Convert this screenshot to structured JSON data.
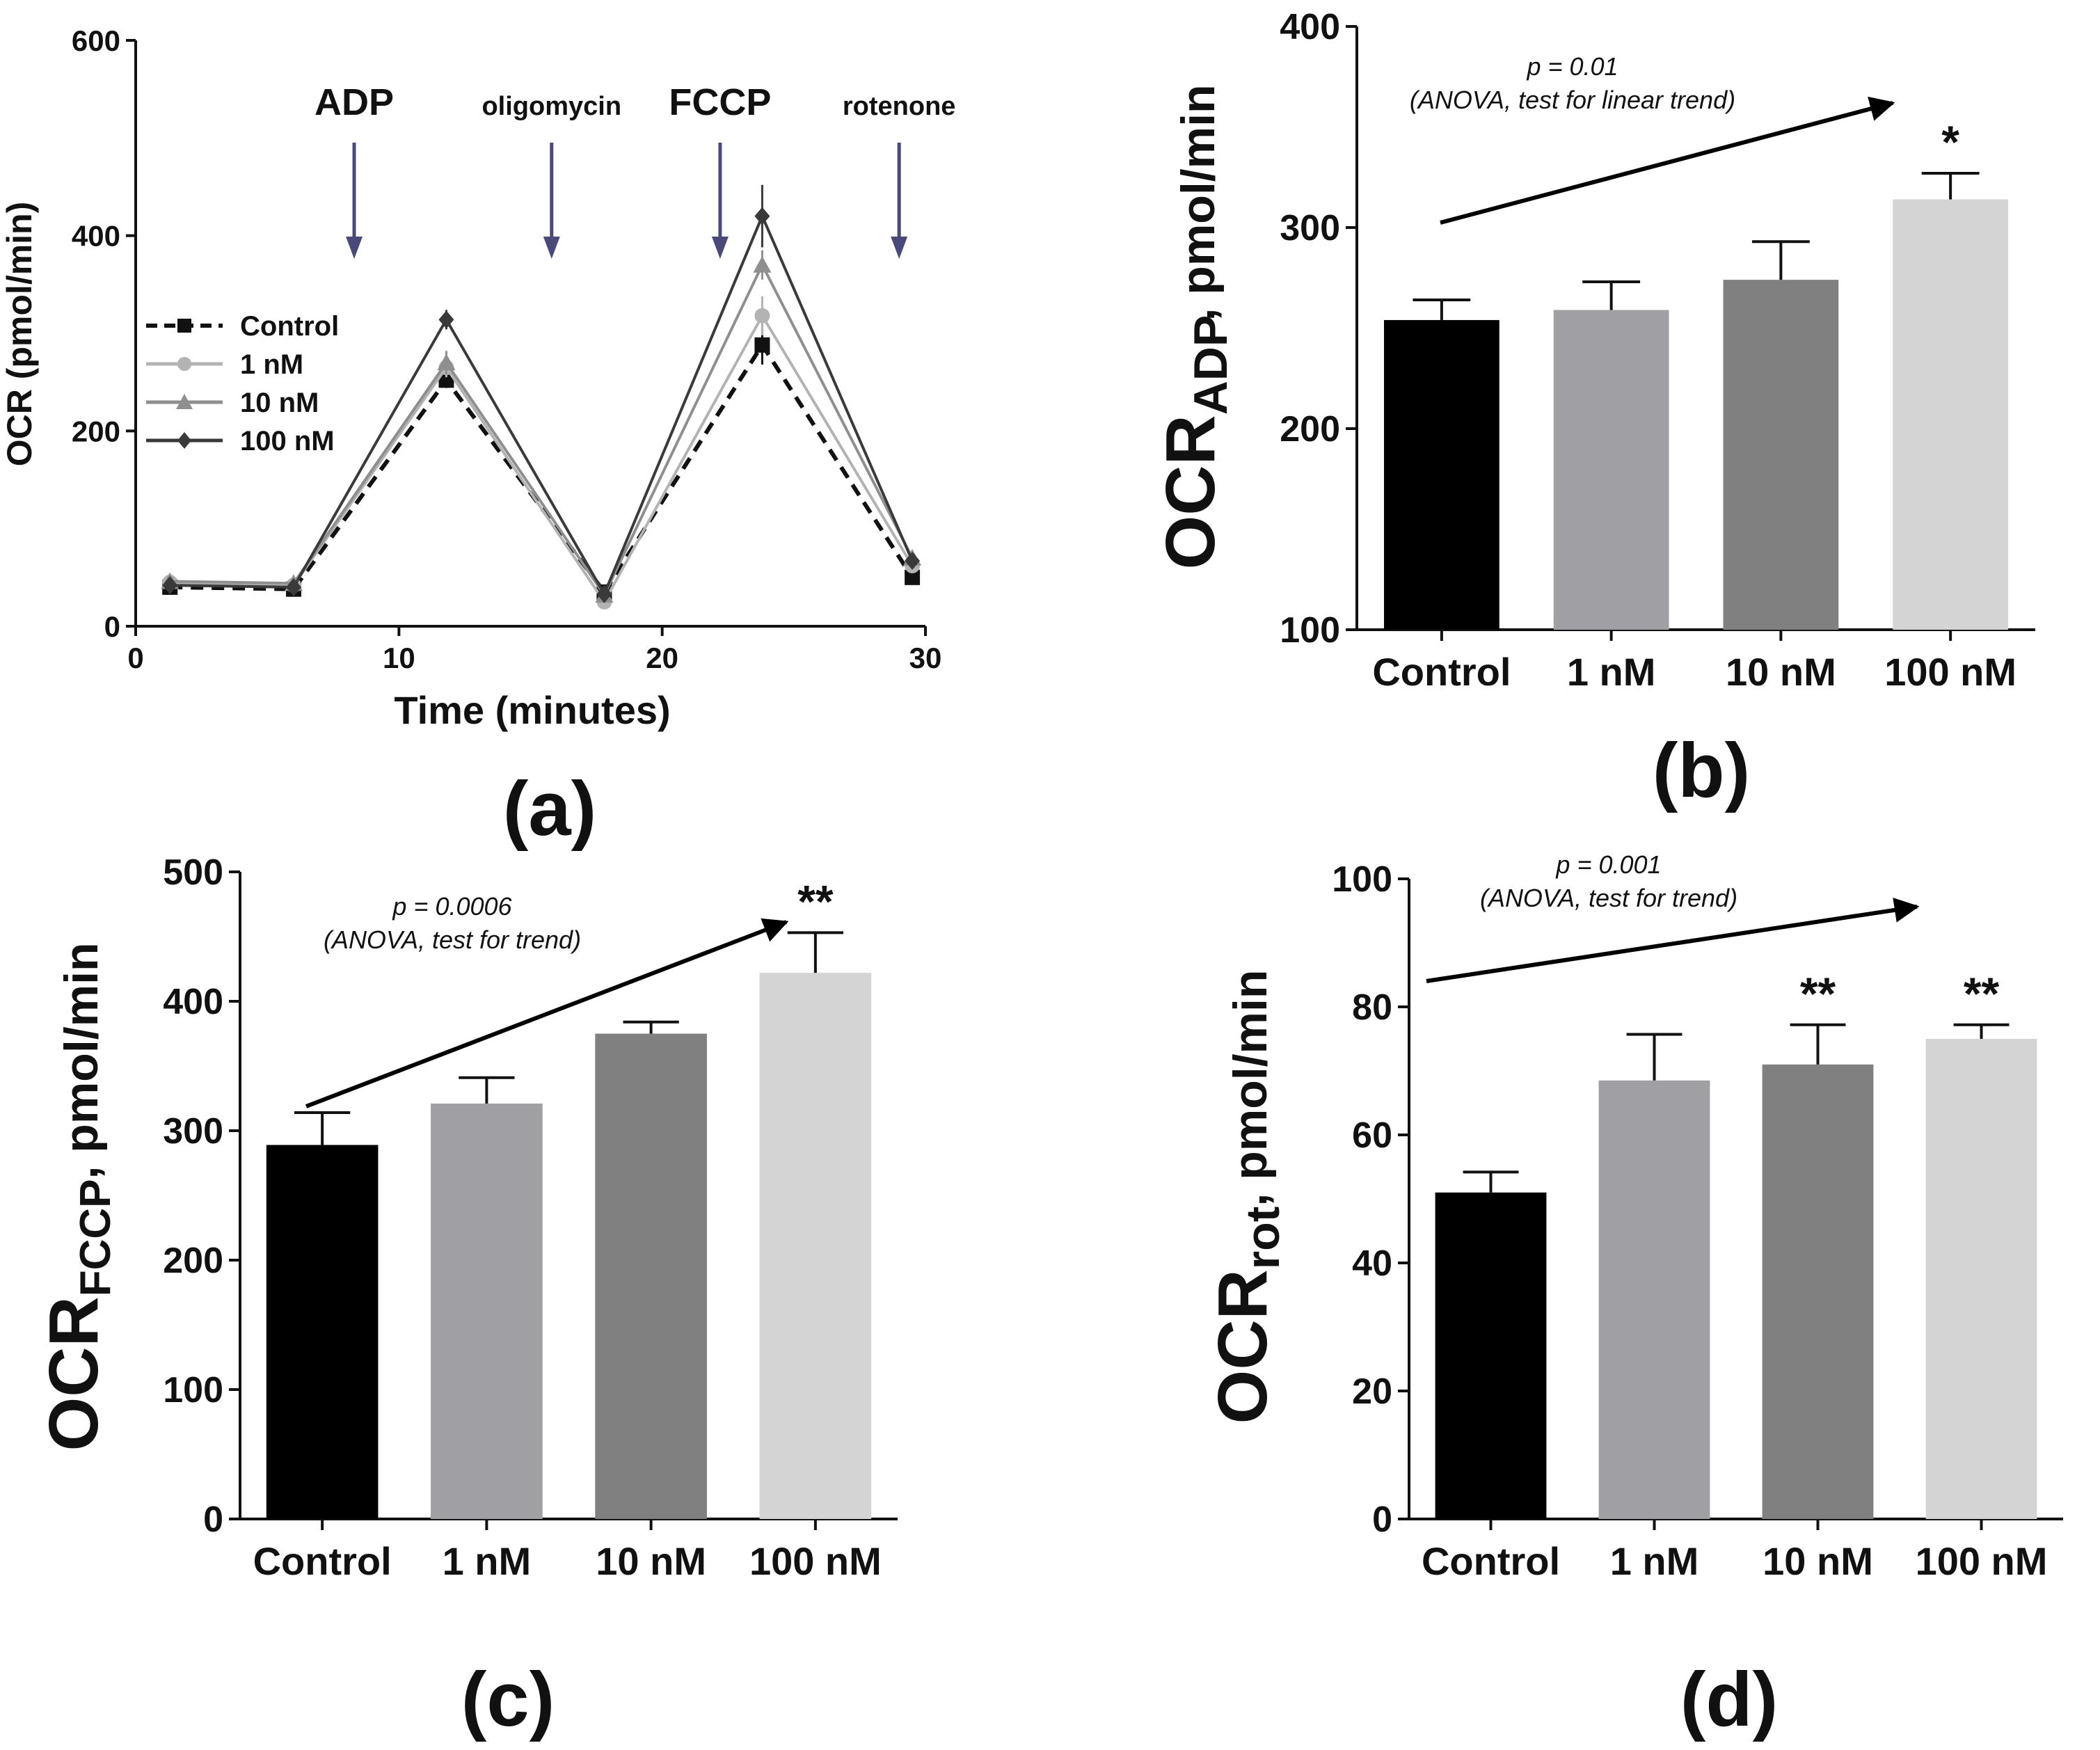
{
  "panels": {
    "a": {
      "label": "(a)"
    },
    "b": {
      "label": "(b)"
    },
    "c": {
      "label": "(c)"
    },
    "d": {
      "label": "(d)"
    }
  },
  "chart_data": [
    {
      "id": "a",
      "type": "line",
      "xlabel": "Time (minutes)",
      "ylabel": "OCR (pmol/min)",
      "xlim": [
        0,
        30
      ],
      "ylim": [
        0,
        600
      ],
      "xticks": [
        0,
        10,
        20,
        30
      ],
      "yticks": [
        0,
        200,
        400,
        600
      ],
      "x": [
        1.3,
        6,
        11.8,
        17.8,
        23.8,
        29.5
      ],
      "series": [
        {
          "name": "Control",
          "color": "#111111",
          "dashed": true,
          "marker": "square",
          "values": [
            40,
            38,
            252,
            35,
            288,
            50
          ],
          "errors": [
            4,
            4,
            8,
            4,
            20,
            5
          ]
        },
        {
          "name": "1 nM",
          "color": "#b3b3b3",
          "dashed": false,
          "marker": "circle",
          "values": [
            45,
            42,
            265,
            25,
            318,
            62
          ],
          "errors": [
            4,
            4,
            10,
            4,
            20,
            5
          ]
        },
        {
          "name": "10 nM",
          "color": "#8f8f8f",
          "dashed": false,
          "marker": "triangle",
          "values": [
            46,
            44,
            270,
            32,
            370,
            70
          ],
          "errors": [
            4,
            4,
            12,
            4,
            15,
            5
          ]
        },
        {
          "name": "100 nM",
          "color": "#3a3a3a",
          "dashed": false,
          "marker": "diamond",
          "values": [
            42,
            40,
            314,
            33,
            420,
            67
          ],
          "errors": [
            4,
            4,
            10,
            4,
            32,
            4
          ]
        }
      ],
      "annotations": [
        {
          "text": "ADP",
          "x": 8.3,
          "large": true
        },
        {
          "text": "oligomycin",
          "x": 15.8,
          "large": false
        },
        {
          "text": "FCCP",
          "x": 22.2,
          "large": true
        },
        {
          "text": "rotenone",
          "x": 29,
          "large": false
        }
      ],
      "arrow_color": "#4a4a7a"
    },
    {
      "id": "b",
      "type": "bar",
      "categories": [
        "Control",
        "1 nM",
        "10 nM",
        "100 nM"
      ],
      "values": [
        254,
        259,
        274,
        314
      ],
      "errors": [
        10,
        14,
        19,
        13
      ],
      "colors": [
        "#000000",
        "#a0a0a4",
        "#808080",
        "#d4d4d4"
      ],
      "ylabel": "OCR",
      "ylabel_sub": "ADP",
      "ylabel_unit": ", pmol/min",
      "ylim": [
        100,
        400
      ],
      "yticks": [
        100,
        200,
        300,
        400
      ],
      "significance": [
        "",
        "",
        "",
        "*"
      ],
      "trend": {
        "p": "p = 0.01",
        "test": "(ANOVA, test for linear trend)"
      }
    },
    {
      "id": "c",
      "type": "bar",
      "categories": [
        "Control",
        "1 nM",
        "10 nM",
        "100 nM"
      ],
      "values": [
        289,
        321,
        375,
        422
      ],
      "errors": [
        25,
        20,
        9,
        31
      ],
      "colors": [
        "#000000",
        "#a0a0a4",
        "#808080",
        "#d4d4d4"
      ],
      "ylabel": "OCR",
      "ylabel_sub": "FCCP",
      "ylabel_unit": ", pmol/min",
      "ylim": [
        0,
        500
      ],
      "yticks": [
        0,
        100,
        200,
        300,
        400,
        500
      ],
      "significance": [
        "",
        "",
        "",
        "**"
      ],
      "trend": {
        "p": "p = 0.0006",
        "test": "(ANOVA, test for trend)"
      }
    },
    {
      "id": "d",
      "type": "bar",
      "categories": [
        "Control",
        "1 nM",
        "10 nM",
        "100 nM"
      ],
      "values": [
        51,
        68.5,
        71,
        75
      ],
      "errors": [
        3.2,
        7.2,
        6.2,
        2.2
      ],
      "colors": [
        "#000000",
        "#a0a0a4",
        "#808080",
        "#d4d4d4"
      ],
      "ylabel": "OCR",
      "ylabel_sub": "rot",
      "ylabel_unit": ", pmol/min",
      "ylim": [
        0,
        100
      ],
      "yticks": [
        0,
        20,
        40,
        60,
        80,
        100
      ],
      "significance": [
        "",
        "",
        "**",
        "**"
      ],
      "trend": {
        "p": "p = 0.001",
        "test": "(ANOVA, test for trend)"
      }
    }
  ]
}
